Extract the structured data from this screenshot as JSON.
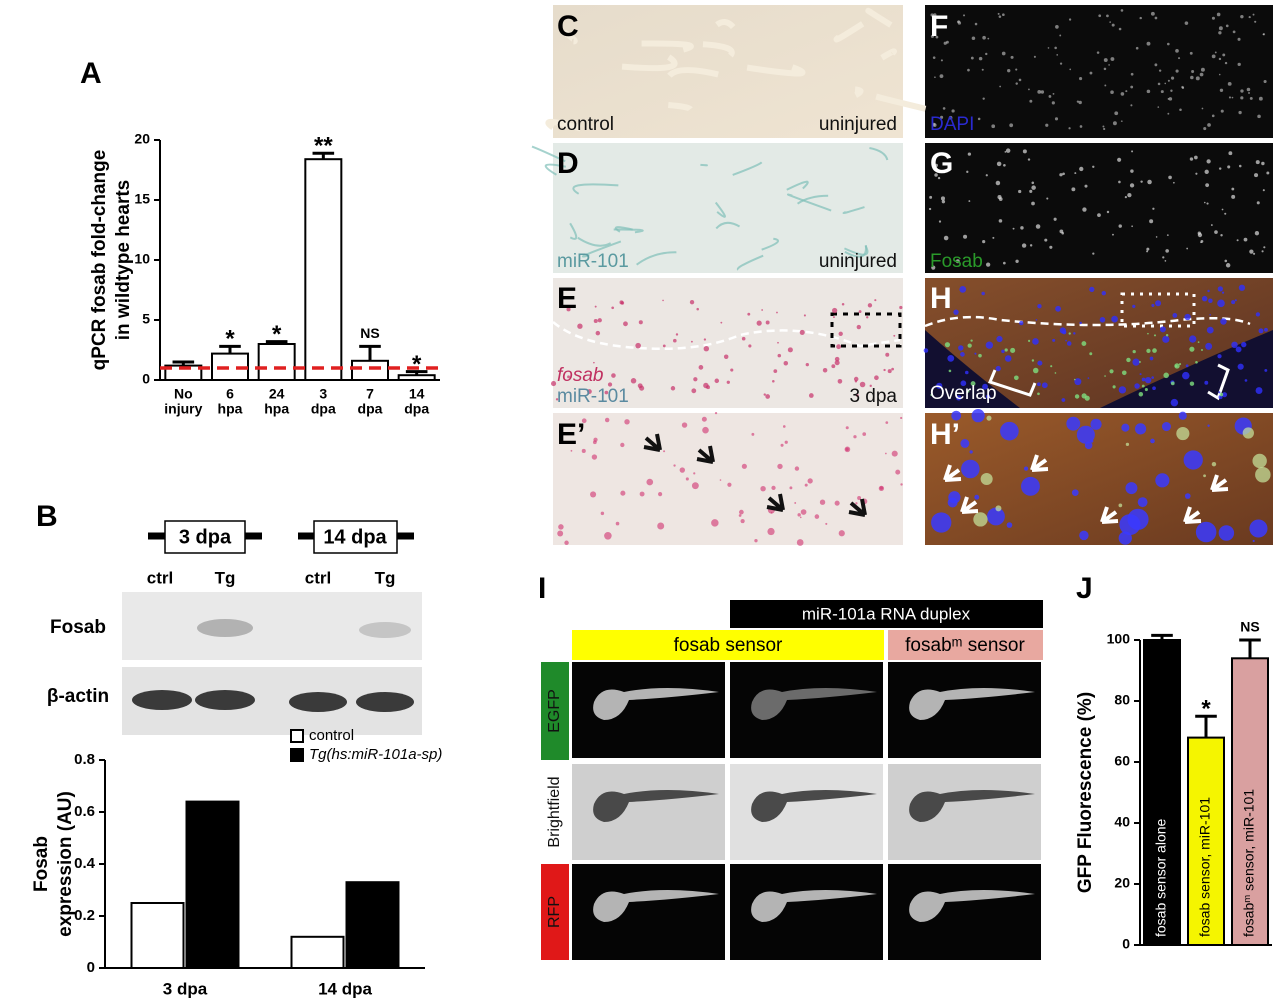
{
  "panel_labels": {
    "A": "A",
    "B": "B",
    "C": "C",
    "D": "D",
    "E": "E",
    "E2": "E’",
    "F": "F",
    "G": "G",
    "H": "H",
    "H2": "H’",
    "I": "I",
    "J": "J"
  },
  "blot": {
    "groups": [
      "3 dpa",
      "14 dpa"
    ],
    "lanes": [
      "ctrl",
      "Tg",
      "ctrl",
      "Tg"
    ],
    "rows": [
      "Fosab",
      "β-actin"
    ]
  },
  "micrographs": {
    "C": [
      "control",
      "uninjured"
    ],
    "D": [
      "miR-101",
      "uninjured"
    ],
    "E": [
      "fosab",
      "miR-101",
      "3 dpa"
    ],
    "F": "DAPI",
    "G": "Fosab",
    "H": "Overlap"
  },
  "sensor_assay": {
    "treatment": "miR-101a RNA duplex",
    "constructs": [
      "fosab sensor",
      "fosabᵐ sensor"
    ],
    "channels": [
      "EGFP",
      "Brightfield",
      "RFP"
    ]
  },
  "chart_data": [
    {
      "type": "bar",
      "ylabel": [
        "qPCR fosab fold-change",
        "in wildtype hearts"
      ],
      "categories": [
        [
          "No",
          "injury"
        ],
        [
          "6",
          "hpa"
        ],
        [
          "24",
          "hpa"
        ],
        [
          "3",
          "dpa"
        ],
        [
          "7",
          "dpa"
        ],
        [
          "14",
          "dpa"
        ]
      ],
      "values": [
        1.2,
        2.2,
        3.0,
        18.4,
        1.6,
        0.4
      ],
      "errors": [
        0.3,
        0.6,
        0.2,
        0.5,
        1.2,
        0.3
      ],
      "significance": [
        null,
        "*",
        "*",
        "**",
        "NS",
        "*"
      ],
      "color": "#ffffff",
      "reference_line": {
        "value": 1,
        "color": "#e02020"
      },
      "ylim": [
        0,
        20
      ],
      "yticks": [
        0,
        5,
        10,
        15,
        20
      ]
    },
    {
      "type": "grouped_bar",
      "ylabel": [
        "Fosab",
        "expression (AU)"
      ],
      "categories": [
        "3 dpa",
        "14 dpa"
      ],
      "series": [
        {
          "name": "control",
          "color": "#ffffff",
          "values": [
            0.25,
            0.12
          ]
        },
        {
          "name": "Tg(hs:miR-101a-sp)",
          "color": "#000000",
          "values": [
            0.64,
            0.33
          ]
        }
      ],
      "legend": "top-right",
      "ylim": [
        0,
        0.8
      ],
      "yticks": [
        0,
        0.2,
        0.4,
        0.6,
        0.8
      ]
    },
    {
      "type": "bar",
      "ylabel": [
        "GFP Fluorescence (%)"
      ],
      "categories": [
        "fosab sensor alone",
        "fosab sensor, miR-101",
        "fosabᵐ sensor, miR-101"
      ],
      "values": [
        100,
        68,
        94
      ],
      "errors": [
        1.5,
        7,
        6
      ],
      "significance": [
        null,
        "*",
        "NS"
      ],
      "colors": [
        "#000000",
        "#f5f500",
        "#d9a0a0"
      ],
      "ylim": [
        0,
        100
      ],
      "yticks": [
        0,
        20,
        40,
        60,
        80,
        100
      ]
    }
  ]
}
